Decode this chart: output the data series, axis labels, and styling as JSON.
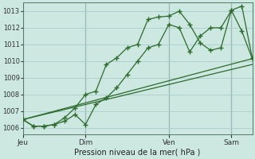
{
  "background_color": "#cce8e0",
  "grid_color": "#aacccc",
  "line_color": "#2d6a2d",
  "marker_color": "#2d6a2d",
  "title": "Pression niveau de la mer( hPa )",
  "ylabel_values": [
    1006,
    1007,
    1008,
    1009,
    1010,
    1011,
    1012,
    1013
  ],
  "x_ticks_labels": [
    "Jeu",
    "Dim",
    "Ven",
    "Sam"
  ],
  "x_ticks_pos": [
    0,
    6,
    14,
    20
  ],
  "line1_x": [
    0,
    1,
    2,
    3,
    4,
    5,
    6,
    7,
    8,
    9,
    10,
    11,
    12,
    13,
    14,
    15,
    16,
    17,
    18,
    19,
    20,
    21,
    22
  ],
  "line1_y": [
    1006.5,
    1006.1,
    1006.1,
    1006.2,
    1006.6,
    1007.2,
    1008.0,
    1008.2,
    1009.8,
    1010.2,
    1010.8,
    1011.0,
    1012.5,
    1012.65,
    1012.7,
    1013.0,
    1012.2,
    1011.1,
    1010.65,
    1010.8,
    1013.05,
    1013.3,
    1010.2
  ],
  "line2_x": [
    0,
    1,
    2,
    3,
    4,
    5,
    6,
    7,
    8,
    9,
    10,
    11,
    12,
    13,
    14,
    15,
    16,
    17,
    18,
    19,
    20,
    21,
    22
  ],
  "line2_y": [
    1006.5,
    1006.1,
    1006.1,
    1006.2,
    1006.4,
    1006.8,
    1006.2,
    1007.4,
    1007.8,
    1008.4,
    1009.2,
    1010.0,
    1010.8,
    1011.0,
    1012.2,
    1012.0,
    1010.55,
    1011.5,
    1012.0,
    1012.0,
    1013.05,
    1011.8,
    1010.15
  ],
  "line3_x": [
    0,
    22
  ],
  "line3_y": [
    1006.5,
    1009.8
  ],
  "line4_x": [
    0,
    22
  ],
  "line4_y": [
    1006.5,
    1010.15
  ],
  "xlim": [
    0,
    22
  ],
  "ylim": [
    1005.6,
    1013.5
  ],
  "figwidth": 3.2,
  "figheight": 2.0,
  "dpi": 100
}
